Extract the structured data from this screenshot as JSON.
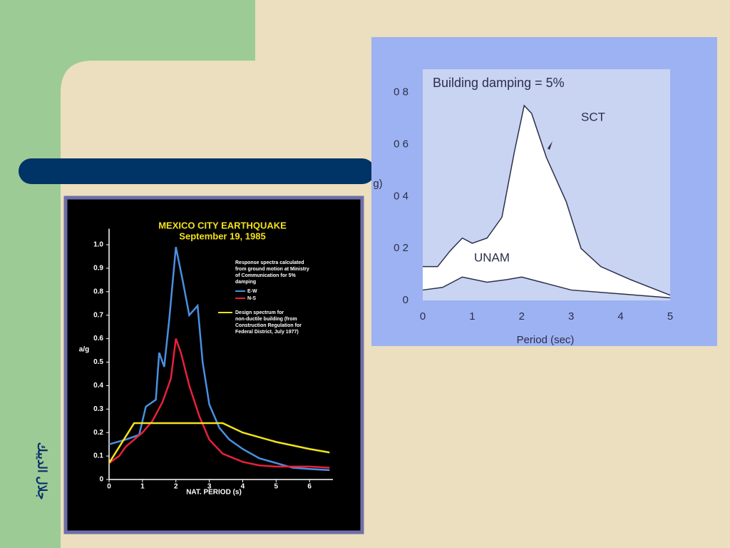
{
  "slide": {
    "author": "جلال الديبك"
  },
  "chart_data": [
    {
      "type": "line",
      "title": "MEXICO CITY EARTHQUAKE",
      "subtitle": "September 19, 1985",
      "x_label": "NAT. PERIOD (s)",
      "y_label": "a/g",
      "annotations": [
        "Response spectra calculated",
        "from ground motion at Ministry",
        "of Communication for 5%",
        "damping"
      ],
      "xlim": [
        0,
        6.7
      ],
      "ylim": [
        0,
        1.05
      ],
      "xticks": [
        0,
        1,
        2,
        3,
        4,
        5,
        6
      ],
      "yticks": [
        0,
        0.1,
        0.2,
        0.3,
        0.4,
        0.5,
        0.6,
        0.7,
        0.8,
        0.9,
        {
          "value": 1,
          "label": "1.0"
        }
      ],
      "series": [
        {
          "name": "E-W",
          "color": "#4a90e2",
          "x": [
            0,
            0.5,
            0.9,
            1.1,
            1.4,
            1.5,
            1.65,
            1.8,
            2.0,
            2.2,
            2.4,
            2.65,
            2.8,
            3.0,
            3.3,
            3.6,
            4,
            4.5,
            5,
            5.5,
            6,
            6.6
          ],
          "values": [
            0.15,
            0.17,
            0.19,
            0.31,
            0.34,
            0.54,
            0.48,
            0.68,
            0.99,
            0.85,
            0.7,
            0.74,
            0.5,
            0.32,
            0.22,
            0.17,
            0.13,
            0.09,
            0.07,
            0.05,
            0.045,
            0.04
          ]
        },
        {
          "name": "N-S",
          "color": "#e8213a",
          "x": [
            0,
            0.3,
            0.5,
            1,
            1.3,
            1.6,
            1.85,
            2.0,
            2.15,
            2.4,
            2.7,
            3.0,
            3.4,
            4,
            4.5,
            5,
            6,
            6.6
          ],
          "values": [
            0.07,
            0.1,
            0.14,
            0.2,
            0.25,
            0.33,
            0.43,
            0.6,
            0.54,
            0.4,
            0.27,
            0.17,
            0.11,
            0.075,
            0.06,
            0.055,
            0.055,
            0.05
          ]
        },
        {
          "name": "Design spectrum for non-ductile building (from Construction Regulation for Federal District, July 1977)",
          "color": "#f2e21c",
          "x": [
            0,
            0.75,
            3.4,
            4,
            5,
            6,
            6.6
          ],
          "values": [
            0.07,
            0.24,
            0.24,
            0.2,
            0.16,
            0.13,
            0.115
          ]
        }
      ]
    },
    {
      "type": "area",
      "title": "Building damping = 5%",
      "x_label": "Period (sec)",
      "y_label": "g)",
      "annotations": [
        "SCT",
        "UNAM"
      ],
      "xlim": [
        0,
        5
      ],
      "ylim": [
        0,
        0.89
      ],
      "xticks": [
        0,
        1,
        2,
        3,
        4,
        5
      ],
      "yticks": [
        0,
        {
          "value": 0.2,
          "label": "0 2"
        },
        {
          "value": 0.4,
          "label": "0 4"
        },
        {
          "value": 0.6,
          "label": "0 6"
        },
        {
          "value": 0.8,
          "label": "0 8"
        }
      ],
      "series": [
        {
          "name": "SCT",
          "color": "#ffffff",
          "x": [
            0,
            0.3,
            0.55,
            0.8,
            1.0,
            1.3,
            1.6,
            1.85,
            2.05,
            2.2,
            2.5,
            2.9,
            3.2,
            3.6,
            4.2,
            5
          ],
          "values": [
            0.13,
            0.13,
            0.19,
            0.24,
            0.22,
            0.24,
            0.32,
            0.57,
            0.75,
            0.72,
            0.55,
            0.38,
            0.2,
            0.13,
            0.08,
            0.02
          ]
        },
        {
          "name": "UNAM",
          "color": "#c9d4f3",
          "x": [
            0,
            0.4,
            0.8,
            1.3,
            1.7,
            2.0,
            2.4,
            3,
            4,
            5
          ],
          "values": [
            0.04,
            0.05,
            0.09,
            0.07,
            0.08,
            0.09,
            0.07,
            0.04,
            0.025,
            0.01
          ]
        }
      ]
    }
  ]
}
